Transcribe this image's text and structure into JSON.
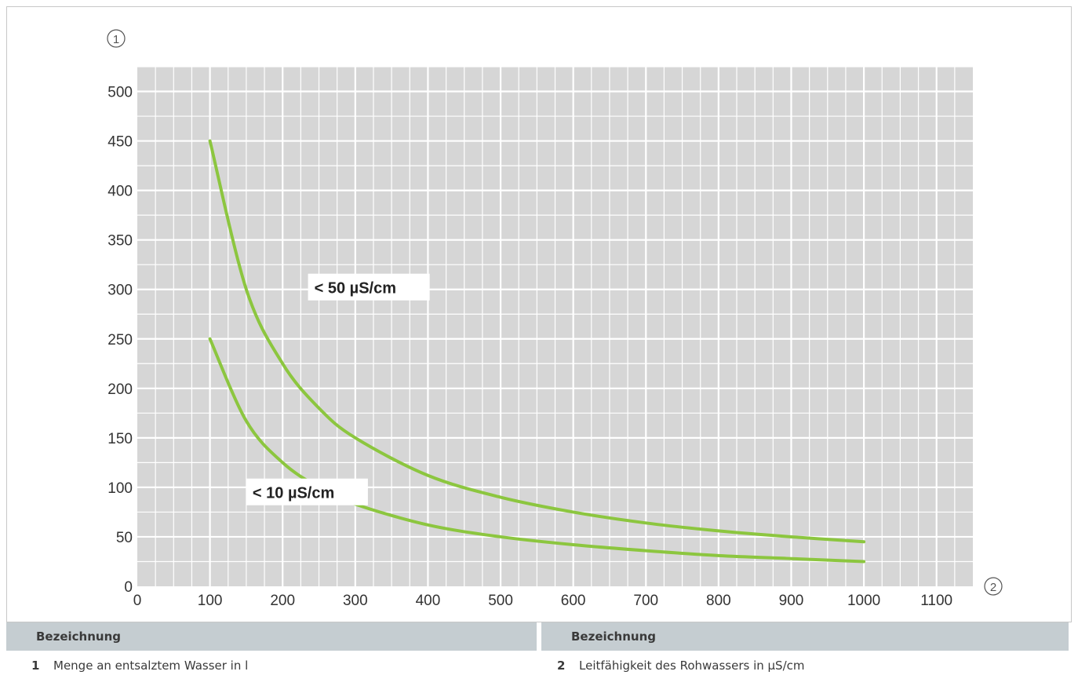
{
  "figure": {
    "y_marker": "1",
    "x_marker": "2"
  },
  "legend": {
    "columns": [
      {
        "header": "Bezeichnung",
        "number": "1",
        "text": "Menge an entsalztem Wasser in l"
      },
      {
        "header": "Bezeichnung",
        "number": "2",
        "text": "Leitfähigkeit des Rohwassers in µS/cm"
      }
    ]
  },
  "chart_data": {
    "type": "line",
    "xlim": [
      0,
      1150
    ],
    "ylim": [
      0,
      525
    ],
    "x_ticks": [
      0,
      100,
      200,
      300,
      400,
      500,
      600,
      700,
      800,
      900,
      1000,
      1100
    ],
    "y_ticks": [
      0,
      50,
      100,
      150,
      200,
      250,
      300,
      350,
      400,
      450,
      500
    ],
    "grid": true,
    "series": [
      {
        "name": "< 50 µS/cm",
        "color": "#8cc63f",
        "x": [
          100,
          150,
          200,
          250,
          300,
          400,
          500,
          600,
          700,
          800,
          900,
          1000
        ],
        "y": [
          450,
          300,
          225,
          180,
          150,
          112,
          90,
          75,
          64,
          56,
          50,
          45
        ]
      },
      {
        "name": "< 10 µS/cm",
        "color": "#8cc63f",
        "x": [
          100,
          150,
          200,
          250,
          300,
          400,
          500,
          600,
          700,
          800,
          900,
          1000
        ],
        "y": [
          250,
          167,
          125,
          100,
          83,
          62,
          50,
          42,
          36,
          31,
          28,
          25
        ]
      }
    ]
  }
}
